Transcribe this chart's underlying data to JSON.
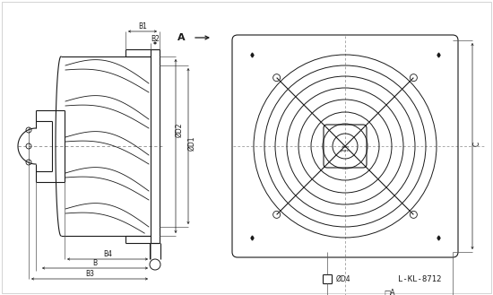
{
  "bg_color": "#ffffff",
  "line_color": "#1a1a1a",
  "dim_color": "#222222",
  "title_ref": "L-KL-8712",
  "labels": {
    "B1": "B1",
    "B2": "B2",
    "B3": "B3",
    "B4": "B4",
    "B": "B",
    "D1": "ØD1",
    "D2": "ØD2",
    "D4": "ØD4",
    "C": "C",
    "A_dim": "□A",
    "A_arrow": "A"
  },
  "fig_width": 5.5,
  "fig_height": 3.29,
  "dpi": 100
}
